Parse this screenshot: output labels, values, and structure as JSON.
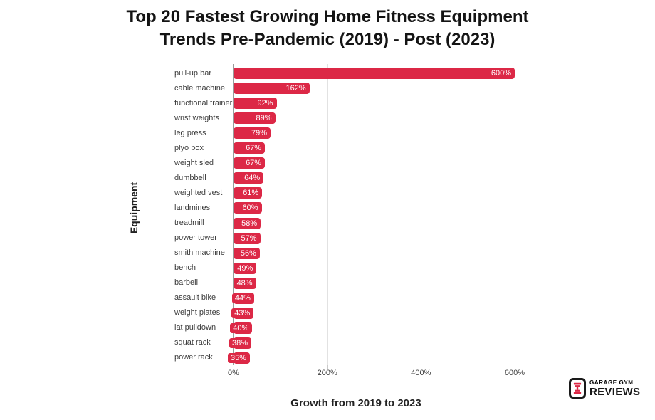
{
  "page": {
    "background": "#FFFFFF"
  },
  "title": "Top 20 Fastest Growing Home Fitness Equipment Trends Pre-Pandemic (2019) - Post (2023)",
  "chart_data": {
    "type": "bar",
    "orientation": "horizontal",
    "title": "Top 20 Fastest Growing Home Fitness Equipment Trends Pre-Pandemic (2019) - Post (2023)",
    "xlabel": "Growth from 2019 to 2023",
    "ylabel": "Equipment",
    "categories": [
      "pull-up bar",
      "cable machine",
      "functional trainer",
      "wrist weights",
      "leg press",
      "plyo box",
      "weight sled",
      "dumbbell",
      "weighted vest",
      "landmines",
      "treadmill",
      "power tower",
      "smith machine",
      "bench",
      "barbell",
      "assault bike",
      "weight plates",
      "lat pulldown",
      "squat rack",
      "power rack"
    ],
    "values": [
      600,
      162,
      92,
      89,
      79,
      67,
      67,
      64,
      61,
      60,
      58,
      57,
      56,
      49,
      48,
      44,
      43,
      40,
      38,
      35
    ],
    "value_suffix": "%",
    "xlim": [
      0,
      600
    ],
    "x_ticks": [
      {
        "label": "0%",
        "value": 0
      },
      {
        "label": "200%",
        "value": 200
      },
      {
        "label": "400%",
        "value": 400
      },
      {
        "label": "600%",
        "value": 600
      }
    ],
    "grid": "vertical-only",
    "legend": "none",
    "bar_color": "#DC2846",
    "value_label_color": "#FFFFFF"
  },
  "branding": {
    "name_line1": "GARAGE GYM",
    "name_line2": "REVIEWS",
    "icon": "dumbbell-icon",
    "accent_color": "#DC2846",
    "text_color": "#181818"
  },
  "colors": {
    "axis_line": "#9A9A9A",
    "gridline": "#E2E2E2",
    "tick": "#C9C9C9",
    "label_text": "#3B3B3B",
    "title_text": "#141414"
  }
}
